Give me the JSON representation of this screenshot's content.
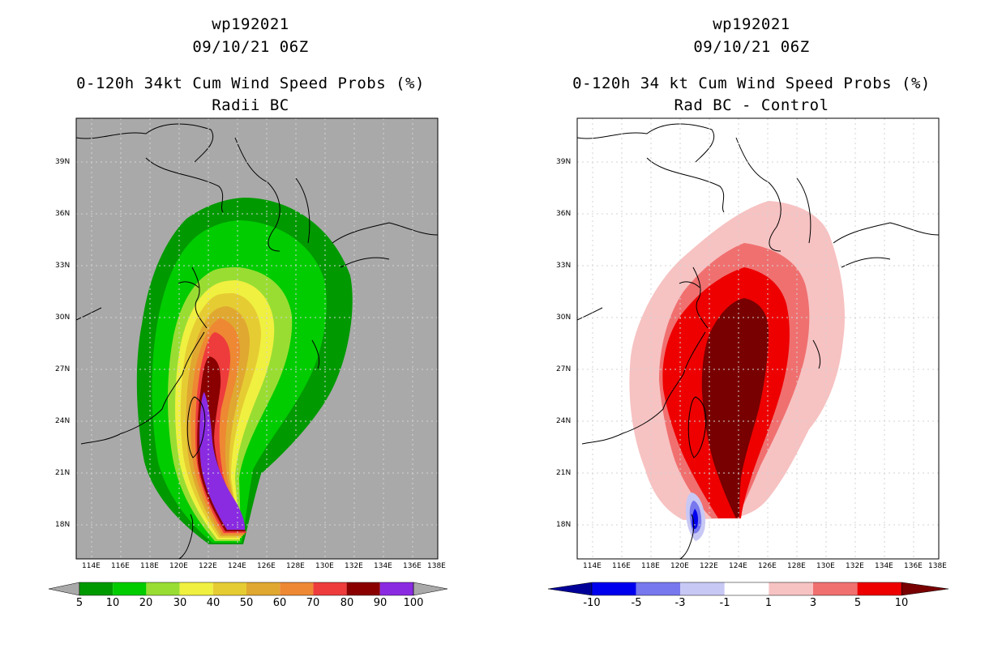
{
  "left_panel": {
    "storm_id": "wp192021",
    "datetime": "09/10/21 06Z",
    "title": "0-120h 34kt Cum Wind Speed Probs (%)",
    "subtitle": "Radii BC",
    "colorbar_labels": [
      "5",
      "10",
      "20",
      "30",
      "40",
      "50",
      "60",
      "70",
      "80",
      "90",
      "100"
    ],
    "colorbar_colors": [
      "#009a00",
      "#00cc00",
      "#99dd33",
      "#f0f040",
      "#e6cc33",
      "#e0a830",
      "#ee8833",
      "#ee3c3c",
      "#8a0000",
      "#8a2be2"
    ],
    "background_color": "#a9a9a9"
  },
  "right_panel": {
    "storm_id": "wp192021",
    "datetime": "09/10/21 06Z",
    "title": "0-120h 34 kt Cum Wind Speed Probs (%)",
    "subtitle": "Rad BC - Control",
    "colorbar_labels": [
      "-10",
      "-5",
      "-3",
      "-1",
      "1",
      "3",
      "5",
      "10"
    ],
    "colorbar_colors": [
      "#000099",
      "#0000ee",
      "#7777ee",
      "#c8c8f5",
      "#ffffff",
      "#f7c2c2",
      "#f07070",
      "#ee0000",
      "#780000"
    ],
    "background_color": "#ffffff"
  },
  "lon_labels": [
    "114E",
    "116E",
    "118E",
    "120E",
    "122E",
    "124E",
    "126E",
    "128E",
    "130E",
    "132E",
    "134E",
    "136E",
    "138E"
  ],
  "lat_labels": [
    "39N",
    "36N",
    "33N",
    "30N",
    "27N",
    "24N",
    "21N",
    "18N"
  ]
}
